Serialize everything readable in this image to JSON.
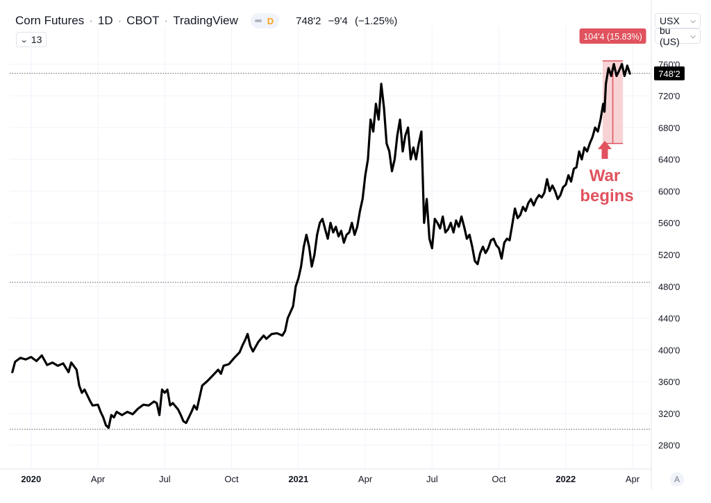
{
  "header": {
    "symbol": "Corn Futures",
    "interval": "1D",
    "exchange": "CBOT",
    "source": "TradingView",
    "interval_badge": "D",
    "last_price": "748'2",
    "change": "−9'4",
    "change_pct": "(−1.25%)"
  },
  "toolbar": {
    "indicators_count": "13"
  },
  "currency_select": {
    "value": "USX"
  },
  "unit_select": {
    "value": "bu (US)"
  },
  "axis_mode_label": "A",
  "colors": {
    "line": "#000000",
    "highlight": "#e0525d",
    "highlight_fill": "#f4c4c8",
    "grid": "#f0f3fa"
  },
  "annotation": {
    "line1": "War",
    "line2": "begins"
  },
  "measure_label": "104'4 (15.83%)",
  "last_price_label": "748'2",
  "chart_data": {
    "type": "line",
    "title": "Corn Futures · 1D · CBOT",
    "ylabel": "",
    "ylim": [
      250,
      790
    ],
    "xlim": [
      2019.92,
      2022.32
    ],
    "y_ticks": [
      {
        "v": 280,
        "label": "280'0"
      },
      {
        "v": 320,
        "label": "320'0"
      },
      {
        "v": 360,
        "label": "360'0"
      },
      {
        "v": 400,
        "label": "400'0"
      },
      {
        "v": 440,
        "label": "440'0"
      },
      {
        "v": 480,
        "label": "480'0"
      },
      {
        "v": 520,
        "label": "520'0"
      },
      {
        "v": 560,
        "label": "560'0"
      },
      {
        "v": 600,
        "label": "600'0"
      },
      {
        "v": 640,
        "label": "640'0"
      },
      {
        "v": 680,
        "label": "680'0"
      },
      {
        "v": 720,
        "label": "720'0"
      },
      {
        "v": 760,
        "label": "760'0"
      }
    ],
    "x_ticks": [
      {
        "t": 2020.0,
        "label": "2020",
        "bold": true
      },
      {
        "t": 2020.25,
        "label": "Apr"
      },
      {
        "t": 2020.5,
        "label": "Jul"
      },
      {
        "t": 2020.75,
        "label": "Oct"
      },
      {
        "t": 2021.0,
        "label": "2021",
        "bold": true
      },
      {
        "t": 2021.25,
        "label": "Apr"
      },
      {
        "t": 2021.5,
        "label": "Jul"
      },
      {
        "t": 2021.75,
        "label": "Oct"
      },
      {
        "t": 2022.0,
        "label": "2022",
        "bold": true
      },
      {
        "t": 2022.25,
        "label": "Apr"
      }
    ],
    "reference_lines": [
      748.25,
      485,
      300
    ],
    "measure": {
      "t0": 2022.138,
      "t1": 2022.214,
      "low": 660,
      "high": 764
    },
    "arrow_at": {
      "t": 2022.146,
      "value": 645
    },
    "series": [
      {
        "points": [
          [
            2019.93,
            372
          ],
          [
            2019.94,
            385
          ],
          [
            2019.96,
            390
          ],
          [
            2019.98,
            388
          ],
          [
            2020.0,
            391
          ],
          [
            2020.02,
            386
          ],
          [
            2020.04,
            393
          ],
          [
            2020.06,
            381
          ],
          [
            2020.08,
            384
          ],
          [
            2020.1,
            380
          ],
          [
            2020.12,
            383
          ],
          [
            2020.14,
            372
          ],
          [
            2020.15,
            384
          ],
          [
            2020.17,
            375
          ],
          [
            2020.18,
            355
          ],
          [
            2020.19,
            346
          ],
          [
            2020.2,
            350
          ],
          [
            2020.22,
            336
          ],
          [
            2020.23,
            330
          ],
          [
            2020.25,
            331
          ],
          [
            2020.26,
            322
          ],
          [
            2020.27,
            315
          ],
          [
            2020.28,
            305
          ],
          [
            2020.29,
            302
          ],
          [
            2020.3,
            318
          ],
          [
            2020.31,
            315
          ],
          [
            2020.32,
            322
          ],
          [
            2020.34,
            318
          ],
          [
            2020.36,
            322
          ],
          [
            2020.38,
            319
          ],
          [
            2020.4,
            326
          ],
          [
            2020.42,
            331
          ],
          [
            2020.44,
            330
          ],
          [
            2020.46,
            335
          ],
          [
            2020.47,
            333
          ],
          [
            2020.48,
            318
          ],
          [
            2020.49,
            350
          ],
          [
            2020.5,
            346
          ],
          [
            2020.51,
            350
          ],
          [
            2020.52,
            330
          ],
          [
            2020.53,
            333
          ],
          [
            2020.55,
            325
          ],
          [
            2020.56,
            318
          ],
          [
            2020.57,
            310
          ],
          [
            2020.58,
            308
          ],
          [
            2020.6,
            322
          ],
          [
            2020.61,
            330
          ],
          [
            2020.62,
            325
          ],
          [
            2020.64,
            355
          ],
          [
            2020.66,
            361
          ],
          [
            2020.68,
            368
          ],
          [
            2020.7,
            375
          ],
          [
            2020.71,
            370
          ],
          [
            2020.72,
            380
          ],
          [
            2020.74,
            382
          ],
          [
            2020.76,
            390
          ],
          [
            2020.78,
            397
          ],
          [
            2020.79,
            405
          ],
          [
            2020.8,
            412
          ],
          [
            2020.81,
            420
          ],
          [
            2020.82,
            405
          ],
          [
            2020.83,
            398
          ],
          [
            2020.85,
            410
          ],
          [
            2020.87,
            418
          ],
          [
            2020.88,
            414
          ],
          [
            2020.9,
            420
          ],
          [
            2020.92,
            421
          ],
          [
            2020.94,
            418
          ],
          [
            2020.95,
            424
          ],
          [
            2020.96,
            440
          ],
          [
            2020.98,
            455
          ],
          [
            2020.99,
            480
          ],
          [
            2021.0,
            490
          ],
          [
            2021.01,
            505
          ],
          [
            2021.02,
            530
          ],
          [
            2021.03,
            545
          ],
          [
            2021.04,
            530
          ],
          [
            2021.05,
            505
          ],
          [
            2021.06,
            520
          ],
          [
            2021.07,
            545
          ],
          [
            2021.08,
            560
          ],
          [
            2021.09,
            565
          ],
          [
            2021.1,
            552
          ],
          [
            2021.11,
            540
          ],
          [
            2021.12,
            560
          ],
          [
            2021.13,
            548
          ],
          [
            2021.14,
            555
          ],
          [
            2021.15,
            543
          ],
          [
            2021.16,
            550
          ],
          [
            2021.17,
            535
          ],
          [
            2021.18,
            545
          ],
          [
            2021.19,
            548
          ],
          [
            2021.2,
            560
          ],
          [
            2021.21,
            545
          ],
          [
            2021.22,
            555
          ],
          [
            2021.23,
            575
          ],
          [
            2021.24,
            590
          ],
          [
            2021.25,
            620
          ],
          [
            2021.26,
            640
          ],
          [
            2021.27,
            690
          ],
          [
            2021.28,
            675
          ],
          [
            2021.29,
            710
          ],
          [
            2021.3,
            690
          ],
          [
            2021.31,
            735
          ],
          [
            2021.32,
            705
          ],
          [
            2021.33,
            660
          ],
          [
            2021.34,
            650
          ],
          [
            2021.35,
            625
          ],
          [
            2021.36,
            640
          ],
          [
            2021.37,
            670
          ],
          [
            2021.38,
            690
          ],
          [
            2021.39,
            650
          ],
          [
            2021.4,
            670
          ],
          [
            2021.41,
            680
          ],
          [
            2021.42,
            640
          ],
          [
            2021.43,
            655
          ],
          [
            2021.44,
            640
          ],
          [
            2021.45,
            660
          ],
          [
            2021.46,
            675
          ],
          [
            2021.47,
            560
          ],
          [
            2021.48,
            590
          ],
          [
            2021.49,
            540
          ],
          [
            2021.5,
            528
          ],
          [
            2021.51,
            565
          ],
          [
            2021.52,
            560
          ],
          [
            2021.53,
            553
          ],
          [
            2021.54,
            568
          ],
          [
            2021.55,
            548
          ],
          [
            2021.56,
            552
          ],
          [
            2021.57,
            560
          ],
          [
            2021.58,
            548
          ],
          [
            2021.59,
            563
          ],
          [
            2021.6,
            555
          ],
          [
            2021.61,
            568
          ],
          [
            2021.62,
            555
          ],
          [
            2021.63,
            540
          ],
          [
            2021.64,
            545
          ],
          [
            2021.65,
            530
          ],
          [
            2021.66,
            512
          ],
          [
            2021.67,
            508
          ],
          [
            2021.68,
            522
          ],
          [
            2021.69,
            530
          ],
          [
            2021.7,
            522
          ],
          [
            2021.71,
            528
          ],
          [
            2021.72,
            538
          ],
          [
            2021.73,
            540
          ],
          [
            2021.74,
            532
          ],
          [
            2021.75,
            528
          ],
          [
            2021.76,
            515
          ],
          [
            2021.77,
            535
          ],
          [
            2021.78,
            540
          ],
          [
            2021.79,
            538
          ],
          [
            2021.8,
            558
          ],
          [
            2021.81,
            578
          ],
          [
            2021.82,
            566
          ],
          [
            2021.83,
            570
          ],
          [
            2021.84,
            580
          ],
          [
            2021.85,
            575
          ],
          [
            2021.86,
            585
          ],
          [
            2021.87,
            590
          ],
          [
            2021.88,
            582
          ],
          [
            2021.89,
            590
          ],
          [
            2021.9,
            595
          ],
          [
            2021.91,
            592
          ],
          [
            2021.92,
            598
          ],
          [
            2021.93,
            615
          ],
          [
            2021.94,
            600
          ],
          [
            2021.95,
            607
          ],
          [
            2021.96,
            600
          ],
          [
            2021.97,
            590
          ],
          [
            2021.98,
            595
          ],
          [
            2021.99,
            605
          ],
          [
            2022.0,
            608
          ],
          [
            2022.01,
            620
          ],
          [
            2022.02,
            612
          ],
          [
            2022.03,
            628
          ],
          [
            2022.04,
            630
          ],
          [
            2022.05,
            650
          ],
          [
            2022.06,
            640
          ],
          [
            2022.07,
            655
          ],
          [
            2022.08,
            650
          ],
          [
            2022.09,
            660
          ],
          [
            2022.1,
            668
          ],
          [
            2022.11,
            680
          ],
          [
            2022.12,
            675
          ],
          [
            2022.13,
            690
          ],
          [
            2022.14,
            710
          ],
          [
            2022.145,
            700
          ],
          [
            2022.15,
            735
          ],
          [
            2022.16,
            755
          ],
          [
            2022.17,
            745
          ],
          [
            2022.18,
            760
          ],
          [
            2022.19,
            745
          ],
          [
            2022.2,
            752
          ],
          [
            2022.21,
            760
          ],
          [
            2022.22,
            745
          ],
          [
            2022.23,
            758
          ],
          [
            2022.24,
            748
          ]
        ]
      }
    ]
  }
}
